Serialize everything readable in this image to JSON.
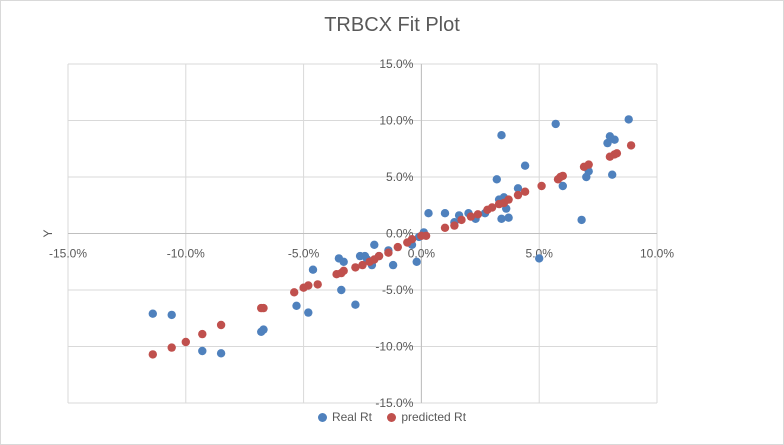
{
  "chart_data": {
    "type": "scatter",
    "title": "TRBCX Fit Plot",
    "xlabel": "",
    "ylabel": "Y",
    "xlim": [
      -0.15,
      0.1
    ],
    "ylim": [
      -0.15,
      0.15
    ],
    "x_ticks": [
      {
        "value": -0.15,
        "label": "-15.0%"
      },
      {
        "value": -0.1,
        "label": "-10.0%"
      },
      {
        "value": -0.05,
        "label": "-5.0%"
      },
      {
        "value": 0.0,
        "label": "0.0%"
      },
      {
        "value": 0.05,
        "label": "5.0%"
      },
      {
        "value": 0.1,
        "label": "10.0%"
      }
    ],
    "y_ticks": [
      {
        "value": 0.15,
        "label": "15.0%"
      },
      {
        "value": 0.1,
        "label": "10.0%"
      },
      {
        "value": 0.05,
        "label": "5.0%"
      },
      {
        "value": 0.0,
        "label": "0.0%"
      },
      {
        "value": -0.05,
        "label": "-5.0%"
      },
      {
        "value": -0.1,
        "label": "-10.0%"
      },
      {
        "value": -0.15,
        "label": "-15.0%"
      }
    ],
    "grid": true,
    "legend_position": "bottom",
    "series": [
      {
        "name": "Real Rt",
        "color": "#4f81bd",
        "points": [
          [
            -0.114,
            -0.071
          ],
          [
            -0.106,
            -0.072
          ],
          [
            -0.093,
            -0.104
          ],
          [
            -0.085,
            -0.106
          ],
          [
            -0.068,
            -0.087
          ],
          [
            -0.067,
            -0.085
          ],
          [
            -0.053,
            -0.064
          ],
          [
            -0.048,
            -0.07
          ],
          [
            -0.046,
            -0.032
          ],
          [
            -0.035,
            -0.022
          ],
          [
            -0.034,
            -0.05
          ],
          [
            -0.033,
            -0.025
          ],
          [
            -0.028,
            -0.063
          ],
          [
            -0.026,
            -0.02
          ],
          [
            -0.024,
            -0.02
          ],
          [
            -0.023,
            -0.023
          ],
          [
            -0.021,
            -0.028
          ],
          [
            -0.02,
            -0.01
          ],
          [
            -0.018,
            -0.02
          ],
          [
            -0.014,
            -0.015
          ],
          [
            -0.012,
            -0.028
          ],
          [
            -0.004,
            -0.01
          ],
          [
            -0.002,
            -0.025
          ],
          [
            -0.001,
            -0.003
          ],
          [
            0.001,
            0.001
          ],
          [
            0.003,
            0.018
          ],
          [
            0.01,
            0.018
          ],
          [
            0.014,
            0.01
          ],
          [
            0.016,
            0.016
          ],
          [
            0.02,
            0.018
          ],
          [
            0.023,
            0.013
          ],
          [
            0.027,
            0.018
          ],
          [
            0.032,
            0.048
          ],
          [
            0.033,
            0.03
          ],
          [
            0.034,
            0.013
          ],
          [
            0.034,
            0.087
          ],
          [
            0.035,
            0.032
          ],
          [
            0.036,
            0.022
          ],
          [
            0.037,
            0.014
          ],
          [
            0.041,
            0.04
          ],
          [
            0.044,
            0.06
          ],
          [
            0.05,
            -0.022
          ],
          [
            0.057,
            0.097
          ],
          [
            0.06,
            0.042
          ],
          [
            0.068,
            0.012
          ],
          [
            0.07,
            0.05
          ],
          [
            0.071,
            0.055
          ],
          [
            0.079,
            0.08
          ],
          [
            0.08,
            0.086
          ],
          [
            0.081,
            0.052
          ],
          [
            0.082,
            0.083
          ],
          [
            0.088,
            0.101
          ]
        ]
      },
      {
        "name": "predicted Rt",
        "color": "#c0504d",
        "points": [
          [
            -0.114,
            -0.107
          ],
          [
            -0.106,
            -0.101
          ],
          [
            -0.1,
            -0.096
          ],
          [
            -0.093,
            -0.089
          ],
          [
            -0.085,
            -0.081
          ],
          [
            -0.068,
            -0.066
          ],
          [
            -0.067,
            -0.066
          ],
          [
            -0.054,
            -0.052
          ],
          [
            -0.05,
            -0.048
          ],
          [
            -0.048,
            -0.046
          ],
          [
            -0.044,
            -0.045
          ],
          [
            -0.036,
            -0.036
          ],
          [
            -0.034,
            -0.035
          ],
          [
            -0.033,
            -0.033
          ],
          [
            -0.028,
            -0.03
          ],
          [
            -0.025,
            -0.028
          ],
          [
            -0.022,
            -0.025
          ],
          [
            -0.02,
            -0.023
          ],
          [
            -0.018,
            -0.02
          ],
          [
            -0.014,
            -0.017
          ],
          [
            -0.01,
            -0.012
          ],
          [
            -0.006,
            -0.008
          ],
          [
            -0.004,
            -0.005
          ],
          [
            0.0,
            -0.002
          ],
          [
            0.002,
            -0.002
          ],
          [
            0.01,
            0.005
          ],
          [
            0.014,
            0.007
          ],
          [
            0.017,
            0.012
          ],
          [
            0.021,
            0.015
          ],
          [
            0.024,
            0.017
          ],
          [
            0.028,
            0.021
          ],
          [
            0.03,
            0.023
          ],
          [
            0.033,
            0.026
          ],
          [
            0.035,
            0.027
          ],
          [
            0.037,
            0.03
          ],
          [
            0.041,
            0.034
          ],
          [
            0.044,
            0.037
          ],
          [
            0.051,
            0.042
          ],
          [
            0.058,
            0.048
          ],
          [
            0.059,
            0.05
          ],
          [
            0.06,
            0.051
          ],
          [
            0.069,
            0.059
          ],
          [
            0.071,
            0.061
          ],
          [
            0.08,
            0.068
          ],
          [
            0.082,
            0.07
          ],
          [
            0.083,
            0.071
          ],
          [
            0.089,
            0.078
          ]
        ]
      }
    ]
  }
}
